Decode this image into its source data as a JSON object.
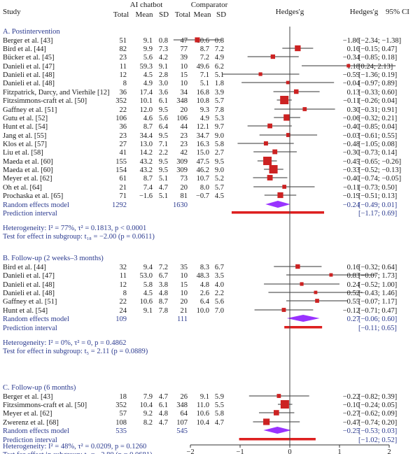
{
  "headers": {
    "study": "Study",
    "ai_group": "AI chatbot",
    "comparator_group": "Comparator",
    "total": "Total",
    "mean": "Mean",
    "sd": "SD",
    "plot_title": "Hedges'g",
    "effect": "Hedges'g",
    "ci": "95% CI"
  },
  "chart_data": {
    "type": "forest",
    "x_axis": {
      "range": [
        -2,
        2
      ],
      "ticks": [
        -2,
        -1,
        0,
        1,
        2
      ],
      "reference_line": 0
    },
    "colors": {
      "square": "#cc2222",
      "diamond": "#9933ff",
      "prediction": "#dd1f1f",
      "header_text": "#2b3a8f"
    },
    "subgroups": [
      {
        "title": "A. Postintervention",
        "studies": [
          {
            "study": "Berger et al. [43]",
            "n1": "51",
            "m1": "9.1",
            "sd1": "0.8",
            "n2": "47",
            "m2": "10.6",
            "sd2": "0.8",
            "g": -1.86,
            "lo": -2.34,
            "hi": -1.38,
            "g_text": "−1.86",
            "ci_text": "[−2.34; −1.38]"
          },
          {
            "study": "Bird et al. [44]",
            "n1": "82",
            "m1": "9.9",
            "sd1": "7.3",
            "n2": "77",
            "m2": "8.7",
            "sd2": "7.2",
            "g": 0.16,
            "lo": -0.15,
            "hi": 0.47,
            "g_text": "0.16",
            "ci_text": "[−0.15; 0.47]"
          },
          {
            "study": "Bücker et al. [45]",
            "n1": "23",
            "m1": "5.6",
            "sd1": "4.2",
            "n2": "39",
            "m2": "7.2",
            "sd2": "4.9",
            "g": -0.34,
            "lo": -0.85,
            "hi": 0.18,
            "g_text": "−0.34",
            "ci_text": "[−0.85; 0.18]"
          },
          {
            "study": "Danieli et al. [47]",
            "n1": "11",
            "m1": "59.3",
            "sd1": "9.1",
            "n2": "10",
            "m2": "49.6",
            "sd2": "6.2",
            "g": 1.18,
            "lo": 0.24,
            "hi": 2.13,
            "g_text": "1.18",
            "ci_text": "[0.24; 2.13]"
          },
          {
            "study": "Danieli et al. [48]",
            "n1": "12",
            "m1": "4.5",
            "sd1": "2.8",
            "n2": "15",
            "m2": "7.1",
            "sd2": "5.1",
            "g": -0.59,
            "lo": -1.36,
            "hi": 0.19,
            "g_text": "−0.59",
            "ci_text": "[−1.36; 0.19]"
          },
          {
            "study": "Danieli et al. [48]",
            "n1": "8",
            "m1": "4.9",
            "sd1": "3.0",
            "n2": "10",
            "m2": "5.1",
            "sd2": "1.8",
            "g": -0.04,
            "lo": -0.97,
            "hi": 0.89,
            "g_text": "−0.04",
            "ci_text": "[−0.97; 0.89]"
          },
          {
            "study": "Fitzpatrick, Darcy, and Vierhile [12]",
            "n1": "36",
            "m1": "17.4",
            "sd1": "3.6",
            "n2": "34",
            "m2": "16.8",
            "sd2": "3.9",
            "g": 0.13,
            "lo": -0.33,
            "hi": 0.6,
            "g_text": "0.13",
            "ci_text": "[−0.33; 0.60]"
          },
          {
            "study": "Fitzsimmons-craft et al. [50]",
            "n1": "352",
            "m1": "10.1",
            "sd1": "6.1",
            "n2": "348",
            "m2": "10.8",
            "sd2": "5.7",
            "g": -0.11,
            "lo": -0.26,
            "hi": 0.04,
            "g_text": "−0.11",
            "ci_text": "[−0.26; 0.04]"
          },
          {
            "study": "Gaffney et al. [51]",
            "n1": "22",
            "m1": "12.0",
            "sd1": "9.5",
            "n2": "20",
            "m2": "9.3",
            "sd2": "7.8",
            "g": 0.3,
            "lo": -0.31,
            "hi": 0.91,
            "g_text": "0.30",
            "ci_text": "[−0.31; 0.91]"
          },
          {
            "study": "Gutu et al. [52]",
            "n1": "106",
            "m1": "4.6",
            "sd1": "5.6",
            "n2": "106",
            "m2": "4.9",
            "sd2": "5.3",
            "g": -0.06,
            "lo": -0.32,
            "hi": 0.21,
            "g_text": "−0.06",
            "ci_text": "[−0.32; 0.21]"
          },
          {
            "study": "Hunt et al. [54]",
            "n1": "36",
            "m1": "8.7",
            "sd1": "6.4",
            "n2": "44",
            "m2": "12.1",
            "sd2": "9.7",
            "g": -0.4,
            "lo": -0.85,
            "hi": 0.04,
            "g_text": "−0.40",
            "ci_text": "[−0.85; 0.04]"
          },
          {
            "study": "Jang et al. [55]",
            "n1": "23",
            "m1": "34.4",
            "sd1": "9.5",
            "n2": "23",
            "m2": "34.7",
            "sd2": "9.0",
            "g": -0.03,
            "lo": -0.61,
            "hi": 0.55,
            "g_text": "−0.03",
            "ci_text": "[−0.61; 0.55]"
          },
          {
            "study": "Klos et al. [57]",
            "n1": "27",
            "m1": "13.0",
            "sd1": "7.1",
            "n2": "23",
            "m2": "16.3",
            "sd2": "5.8",
            "g": -0.48,
            "lo": -1.05,
            "hi": 0.08,
            "g_text": "−0.48",
            "ci_text": "[−1.05; 0.08]"
          },
          {
            "study": "Liu et al. [58]",
            "n1": "41",
            "m1": "14.2",
            "sd1": "2.2",
            "n2": "42",
            "m2": "15.0",
            "sd2": "2.7",
            "g": -0.3,
            "lo": -0.73,
            "hi": 0.14,
            "g_text": "−0.30",
            "ci_text": "[−0.73; 0.14]"
          },
          {
            "study": "Maeda et al. [60]",
            "n1": "155",
            "m1": "43.2",
            "sd1": "9.5",
            "n2": "309",
            "m2": "47.5",
            "sd2": "9.5",
            "g": -0.45,
            "lo": -0.65,
            "hi": -0.26,
            "g_text": "−0.45",
            "ci_text": "[−0.65; −0.26]"
          },
          {
            "study": "Maeda et al. [60]",
            "n1": "154",
            "m1": "43.2",
            "sd1": "9.5",
            "n2": "309",
            "m2": "46.2",
            "sd2": "9.0",
            "g": -0.33,
            "lo": -0.52,
            "hi": -0.13,
            "g_text": "−0.33",
            "ci_text": "[−0.52; −0.13]"
          },
          {
            "study": "Meyer et al. [62]",
            "n1": "61",
            "m1": "8.7",
            "sd1": "5.1",
            "n2": "73",
            "m2": "10.7",
            "sd2": "5.2",
            "g": -0.4,
            "lo": -0.74,
            "hi": -0.05,
            "g_text": "−0.40",
            "ci_text": "[−0.74; −0.05]"
          },
          {
            "study": "Oh et al. [64]",
            "n1": "21",
            "m1": "7.4",
            "sd1": "4.7",
            "n2": "20",
            "m2": "8.0",
            "sd2": "5.7",
            "g": -0.11,
            "lo": -0.73,
            "hi": 0.5,
            "g_text": "−0.11",
            "ci_text": "[−0.73; 0.50]"
          },
          {
            "study": "Prochaska et al. [65]",
            "n1": "71",
            "m1": "−1.6",
            "sd1": "5.1",
            "n2": "81",
            "m2": "−0.7",
            "sd2": "4.5",
            "g": -0.19,
            "lo": -0.51,
            "hi": 0.13,
            "g_text": "−0.19",
            "ci_text": "[−0.51; 0.13]"
          }
        ],
        "random": {
          "label": "Random effects model",
          "n1": "1292",
          "n2": "1630",
          "g": -0.24,
          "lo": -0.49,
          "hi": 0.01,
          "g_text": "−0.24",
          "ci_text": "[−0.49; 0.01]"
        },
        "prediction": {
          "label": "Prediction interval",
          "lo": -1.17,
          "hi": 0.69,
          "ci_text": "[−1.17; 0.69]"
        },
        "heterogeneity": "Heterogeneity: I² = 77%, τ² = 0.1813, p < 0.0001",
        "subgroup_test": "Test for effect in subgroup: t₁₈ = −2.00 (p = 0.0611)"
      },
      {
        "title": "B. Follow-up (2 weeks–3 months)",
        "studies": [
          {
            "study": "Bird et al. [44]",
            "n1": "32",
            "m1": "9.4",
            "sd1": "7.2",
            "n2": "35",
            "m2": "8.3",
            "sd2": "6.7",
            "g": 0.16,
            "lo": -0.32,
            "hi": 0.64,
            "g_text": "0.16",
            "ci_text": "[−0.32; 0.64]"
          },
          {
            "study": "Danieli et al. [47]",
            "n1": "11",
            "m1": "53.0",
            "sd1": "6.7",
            "n2": "10",
            "m2": "48.3",
            "sd2": "3.5",
            "g": 0.83,
            "lo": -0.07,
            "hi": 1.73,
            "g_text": "0.83",
            "ci_text": "[−0.07; 1.73]"
          },
          {
            "study": "Danieli et al. [48]",
            "n1": "12",
            "m1": "5.8",
            "sd1": "3.8",
            "n2": "15",
            "m2": "4.8",
            "sd2": "4.0",
            "g": 0.24,
            "lo": -0.52,
            "hi": 1.0,
            "g_text": "0.24",
            "ci_text": "[−0.52; 1.00]"
          },
          {
            "study": "Danieli et al. [48]",
            "n1": "8",
            "m1": "4.5",
            "sd1": "4.8",
            "n2": "10",
            "m2": "2.6",
            "sd2": "2.2",
            "g": 0.52,
            "lo": -0.43,
            "hi": 1.46,
            "g_text": "0.52",
            "ci_text": "[−0.43; 1.46]"
          },
          {
            "study": "Gaffney et al. [51]",
            "n1": "22",
            "m1": "10.6",
            "sd1": "8.7",
            "n2": "20",
            "m2": "6.4",
            "sd2": "5.6",
            "g": 0.55,
            "lo": -0.07,
            "hi": 1.17,
            "g_text": "0.55",
            "ci_text": "[−0.07; 1.17]"
          },
          {
            "study": "Hunt et al. [54]",
            "n1": "24",
            "m1": "9.1",
            "sd1": "7.8",
            "n2": "21",
            "m2": "10.0",
            "sd2": "7.0",
            "g": -0.12,
            "lo": -0.71,
            "hi": 0.47,
            "g_text": "−0.12",
            "ci_text": "[−0.71; 0.47]"
          }
        ],
        "random": {
          "label": "Random effects model",
          "n1": "109",
          "n2": "111",
          "g": 0.27,
          "lo": -0.06,
          "hi": 0.6,
          "g_text": "0.27",
          "ci_text": "[−0.06; 0.60]"
        },
        "prediction": {
          "label": "Prediction interval",
          "lo": -0.11,
          "hi": 0.65,
          "ci_text": "[−0.11; 0.65]"
        },
        "heterogeneity": "Heterogeneity: I² = 0%, τ² = 0, p = 0.4862",
        "subgroup_test": "Test for effect in subgroup: t₅ = 2.11 (p = 0.0889)"
      },
      {
        "title": "C. Follow-up (6 months)",
        "studies": [
          {
            "study": "Berger et al. [43]",
            "n1": "18",
            "m1": "7.9",
            "sd1": "4.7",
            "n2": "26",
            "m2": "9.1",
            "sd2": "5.9",
            "g": -0.22,
            "lo": -0.82,
            "hi": 0.39,
            "g_text": "−0.22",
            "ci_text": "[−0.82; 0.39]"
          },
          {
            "study": "Fitzsimmons-craft et al. [50]",
            "n1": "352",
            "m1": "10.4",
            "sd1": "6.1",
            "n2": "348",
            "m2": "11.0",
            "sd2": "5.5",
            "g": -0.1,
            "lo": -0.24,
            "hi": 0.05,
            "g_text": "−0.10",
            "ci_text": "[−0.24; 0.05]"
          },
          {
            "study": "Meyer et al. [62]",
            "n1": "57",
            "m1": "9.2",
            "sd1": "4.8",
            "n2": "64",
            "m2": "10.6",
            "sd2": "5.8",
            "g": -0.27,
            "lo": -0.62,
            "hi": 0.09,
            "g_text": "−0.27",
            "ci_text": "[−0.62; 0.09]"
          },
          {
            "study": "Zwerenz et al. [68]",
            "n1": "108",
            "m1": "8.2",
            "sd1": "4.7",
            "n2": "107",
            "m2": "10.4",
            "sd2": "4.7",
            "g": -0.47,
            "lo": -0.74,
            "hi": 0.2,
            "g_text": "−0.47",
            "ci_text": "[−0.74; 0.20]"
          }
        ],
        "random": {
          "label": "Random effects model",
          "n1": "535",
          "n2": "545",
          "g": -0.25,
          "lo": -0.53,
          "hi": 0.03,
          "g_text": "−0.25",
          "ci_text": "[−0.53; 0.03]"
        },
        "prediction": {
          "label": "Prediction interval",
          "lo": -1.02,
          "hi": 0.52,
          "ci_text": "[−1.02; 0.52]"
        },
        "heterogeneity": "Heterogeneity: I² = 48%, τ² = 0.0209, p = 0.1260",
        "subgroup_test": "Test for effect in subgroup: t₃ = −2.80 (p = 0.0681)"
      }
    ]
  }
}
